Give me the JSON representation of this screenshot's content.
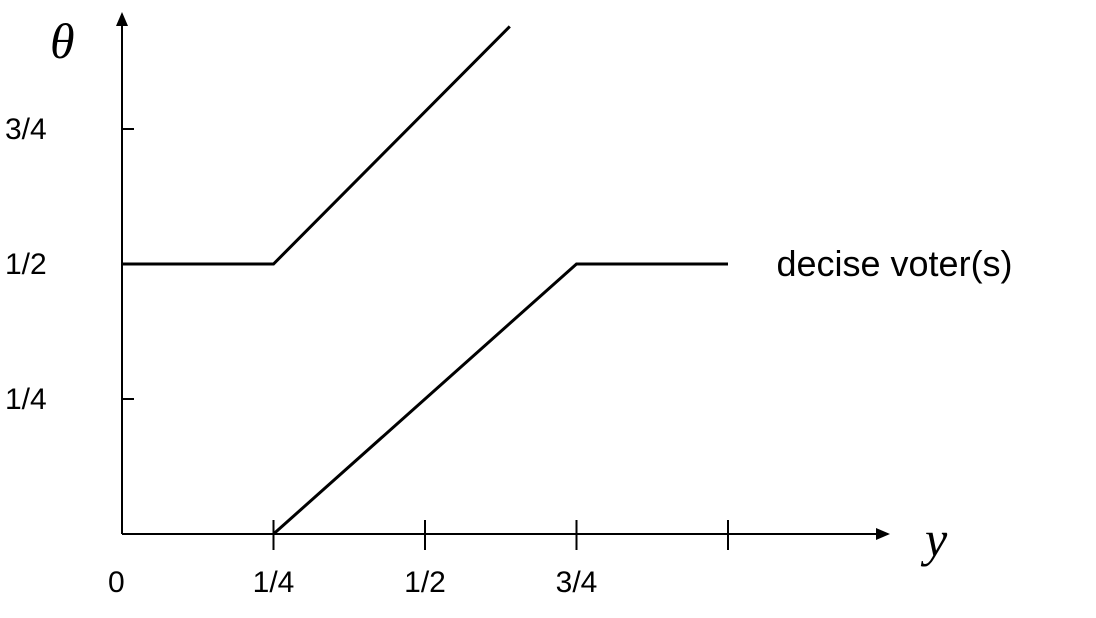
{
  "chart_data": {
    "type": "line",
    "title": "",
    "xlabel": "y",
    "ylabel": "θ",
    "xlim": [
      0,
      1
    ],
    "ylim": [
      0,
      1
    ],
    "x_ticks": [
      {
        "value": 0.25,
        "label": "1/4"
      },
      {
        "value": 0.5,
        "label": "1/2"
      },
      {
        "value": 0.75,
        "label": "3/4"
      },
      {
        "value": 1.0,
        "label": ""
      }
    ],
    "y_ticks": [
      {
        "value": 0.25,
        "label": "1/4"
      },
      {
        "value": 0.5,
        "label": "1/2"
      },
      {
        "value": 0.75,
        "label": "3/4"
      }
    ],
    "origin_label": "0",
    "series": [
      {
        "points": [
          [
            0,
            0.5
          ],
          [
            0.25,
            0.5
          ],
          [
            0.64,
            0.94
          ]
        ]
      },
      {
        "points": [
          [
            0.25,
            0
          ],
          [
            0.75,
            0.5
          ],
          [
            1.0,
            0.5
          ]
        ]
      }
    ],
    "annotations": [
      {
        "text": "decise voter(s)",
        "x": 1.08,
        "y": 0.5
      }
    ],
    "grid": false,
    "legend": "none",
    "colors": {
      "line": "#000000",
      "background": "#ffffff"
    }
  }
}
